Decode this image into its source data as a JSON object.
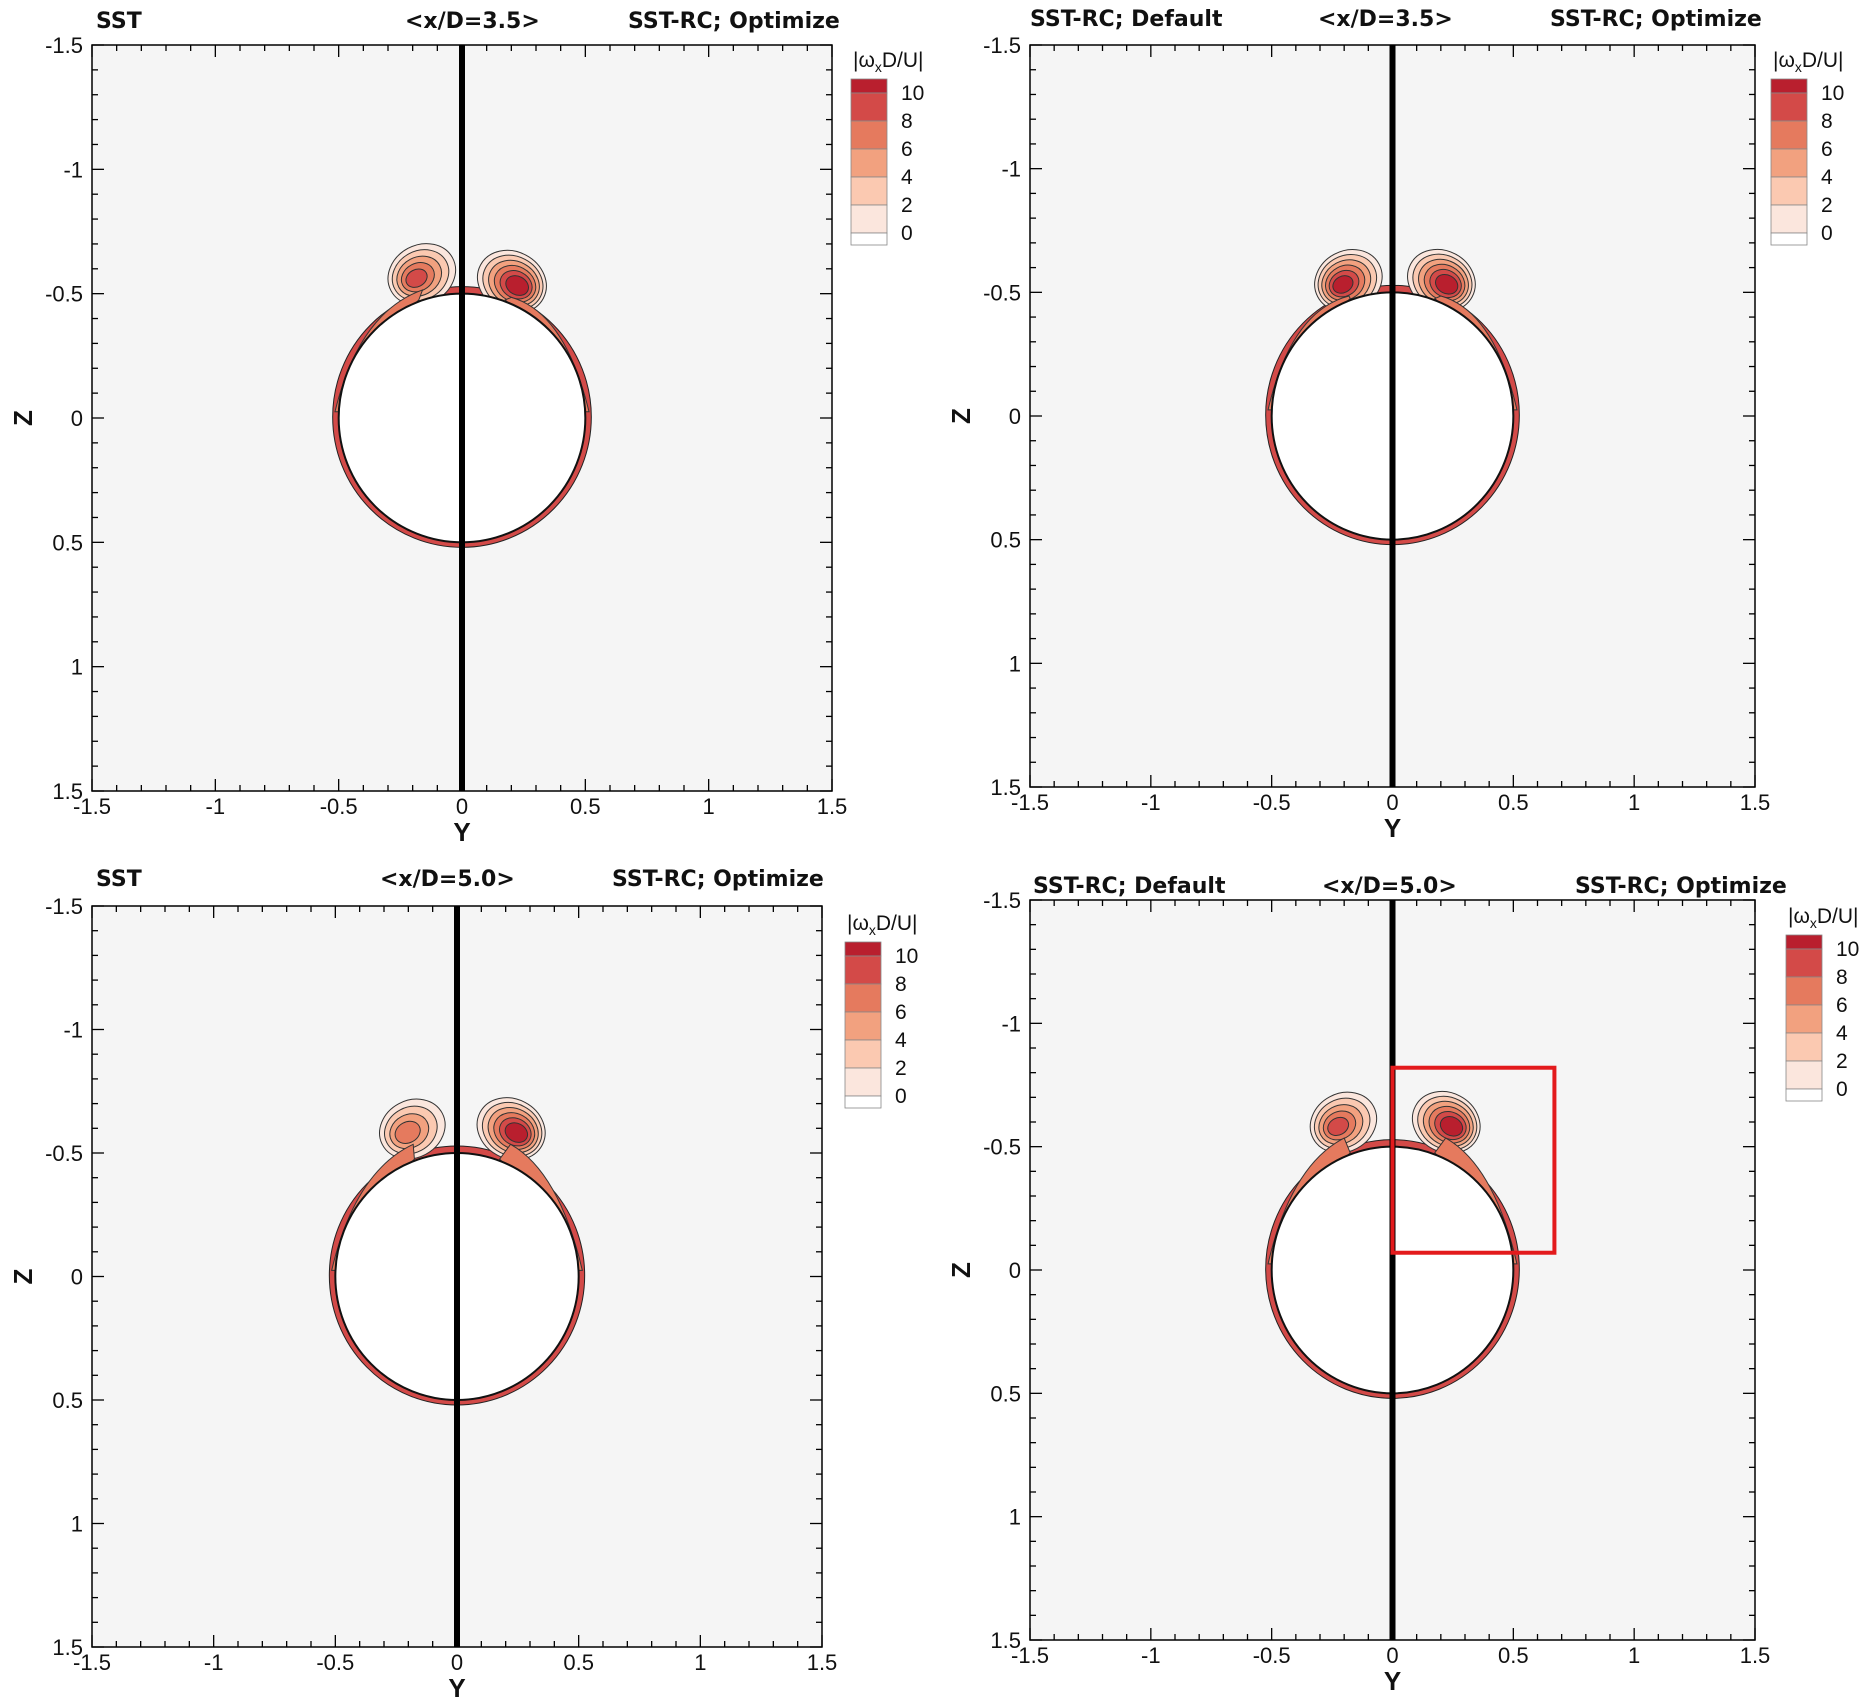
{
  "colors": {
    "plot_bg": "#f5f5f5",
    "level_0": "#ffffff",
    "level_2": "#fbe6dd",
    "level_4": "#fbc9b1",
    "level_6": "#f2a17f",
    "level_8": "#e57a5e",
    "level_10": "#d34a48",
    "level_max": "#b91f2e",
    "highlight_box": "#e31a1c",
    "centerline": "#000000"
  },
  "chart_data": [
    {
      "type": "heatmap",
      "left_label": "SST",
      "title": "<x/D=3.5>",
      "right_label": "SST-RC; Optimize",
      "xlabel": "Y",
      "ylabel": "Z",
      "xlim": [
        -1.5,
        1.5
      ],
      "ylim": [
        -1.5,
        1.5
      ],
      "z_axis_inverted": true,
      "x_ticks": [
        "-1.5",
        "-1",
        "-0.5",
        "0",
        "0.5",
        "1",
        "1.5"
      ],
      "y_ticks": [
        "-1.5",
        "-1",
        "-0.5",
        "0",
        "0.5",
        "1",
        "1.5"
      ],
      "legend_title": "|ωxD/U|",
      "legend_levels": [
        "10",
        "8",
        "6",
        "4",
        "2",
        "0"
      ],
      "cylinder": {
        "center": [
          0,
          0
        ],
        "diameter": 1.0
      },
      "vortices": [
        {
          "side": "left",
          "center_y": -0.16,
          "center_z": -0.58,
          "peak": 8.5
        },
        {
          "side": "right",
          "center_y": 0.2,
          "center_z": -0.55,
          "peak": 11
        }
      ],
      "highlight_box": null
    },
    {
      "type": "heatmap",
      "left_label": "SST-RC; Default",
      "title": "<x/D=3.5>",
      "right_label": "SST-RC; Optimize",
      "xlabel": "Y",
      "ylabel": "Z",
      "xlim": [
        -1.5,
        1.5
      ],
      "ylim": [
        -1.5,
        1.5
      ],
      "z_axis_inverted": true,
      "x_ticks": [
        "-1.5",
        "-1",
        "-0.5",
        "0",
        "0.5",
        "1",
        "1.5"
      ],
      "y_ticks": [
        "-1.5",
        "-1",
        "-0.5",
        "0",
        "0.5",
        "1",
        "1.5"
      ],
      "legend_title": "|ωxD/U|",
      "legend_levels": [
        "10",
        "8",
        "6",
        "4",
        "2",
        "0"
      ],
      "cylinder": {
        "center": [
          0,
          0
        ],
        "diameter": 1.0
      },
      "vortices": [
        {
          "side": "left",
          "center_y": -0.18,
          "center_z": -0.55,
          "peak": 10.5
        },
        {
          "side": "right",
          "center_y": 0.2,
          "center_z": -0.55,
          "peak": 11
        }
      ],
      "highlight_box": null
    },
    {
      "type": "heatmap",
      "left_label": "SST",
      "title": "<x/D=5.0>",
      "right_label": "SST-RC; Optimize",
      "xlabel": "Y",
      "ylabel": "Z",
      "xlim": [
        -1.5,
        1.5
      ],
      "ylim": [
        -1.5,
        1.5
      ],
      "z_axis_inverted": true,
      "x_ticks": [
        "-1.5",
        "-1",
        "-0.5",
        "0",
        "0.5",
        "1",
        "1.5"
      ],
      "y_ticks": [
        "-1.5",
        "-1",
        "-0.5",
        "0",
        "0.5",
        "1",
        "1.5"
      ],
      "legend_title": "|ωxD/U|",
      "legend_levels": [
        "10",
        "8",
        "6",
        "4",
        "2",
        "0"
      ],
      "cylinder": {
        "center": [
          0,
          0
        ],
        "diameter": 1.0
      },
      "vortices": [
        {
          "side": "left",
          "center_y": -0.18,
          "center_z": -0.6,
          "peak": 7.0
        },
        {
          "side": "right",
          "center_y": 0.22,
          "center_z": -0.6,
          "peak": 11
        }
      ],
      "highlight_box": null
    },
    {
      "type": "heatmap",
      "left_label": "SST-RC; Default",
      "title": "<x/D=5.0>",
      "right_label": "SST-RC; Optimize",
      "xlabel": "Y",
      "ylabel": "Z",
      "xlim": [
        -1.5,
        1.5
      ],
      "ylim": [
        -1.5,
        1.5
      ],
      "z_axis_inverted": true,
      "x_ticks": [
        "-1.5",
        "-1",
        "-0.5",
        "0",
        "0.5",
        "1",
        "1.5"
      ],
      "y_ticks": [
        "-1.5",
        "-1",
        "-0.5",
        "0",
        "0.5",
        "1",
        "1.5"
      ],
      "legend_title": "|ωxD/U|",
      "legend_levels": [
        "10",
        "8",
        "6",
        "4",
        "2",
        "0"
      ],
      "cylinder": {
        "center": [
          0,
          0
        ],
        "diameter": 1.0
      },
      "vortices": [
        {
          "side": "left",
          "center_y": -0.2,
          "center_z": -0.6,
          "peak": 8.5
        },
        {
          "side": "right",
          "center_y": 0.22,
          "center_z": -0.6,
          "peak": 11
        }
      ],
      "highlight_box": {
        "y_range": [
          0.0,
          0.67
        ],
        "z_range": [
          -0.82,
          -0.07
        ]
      }
    }
  ]
}
